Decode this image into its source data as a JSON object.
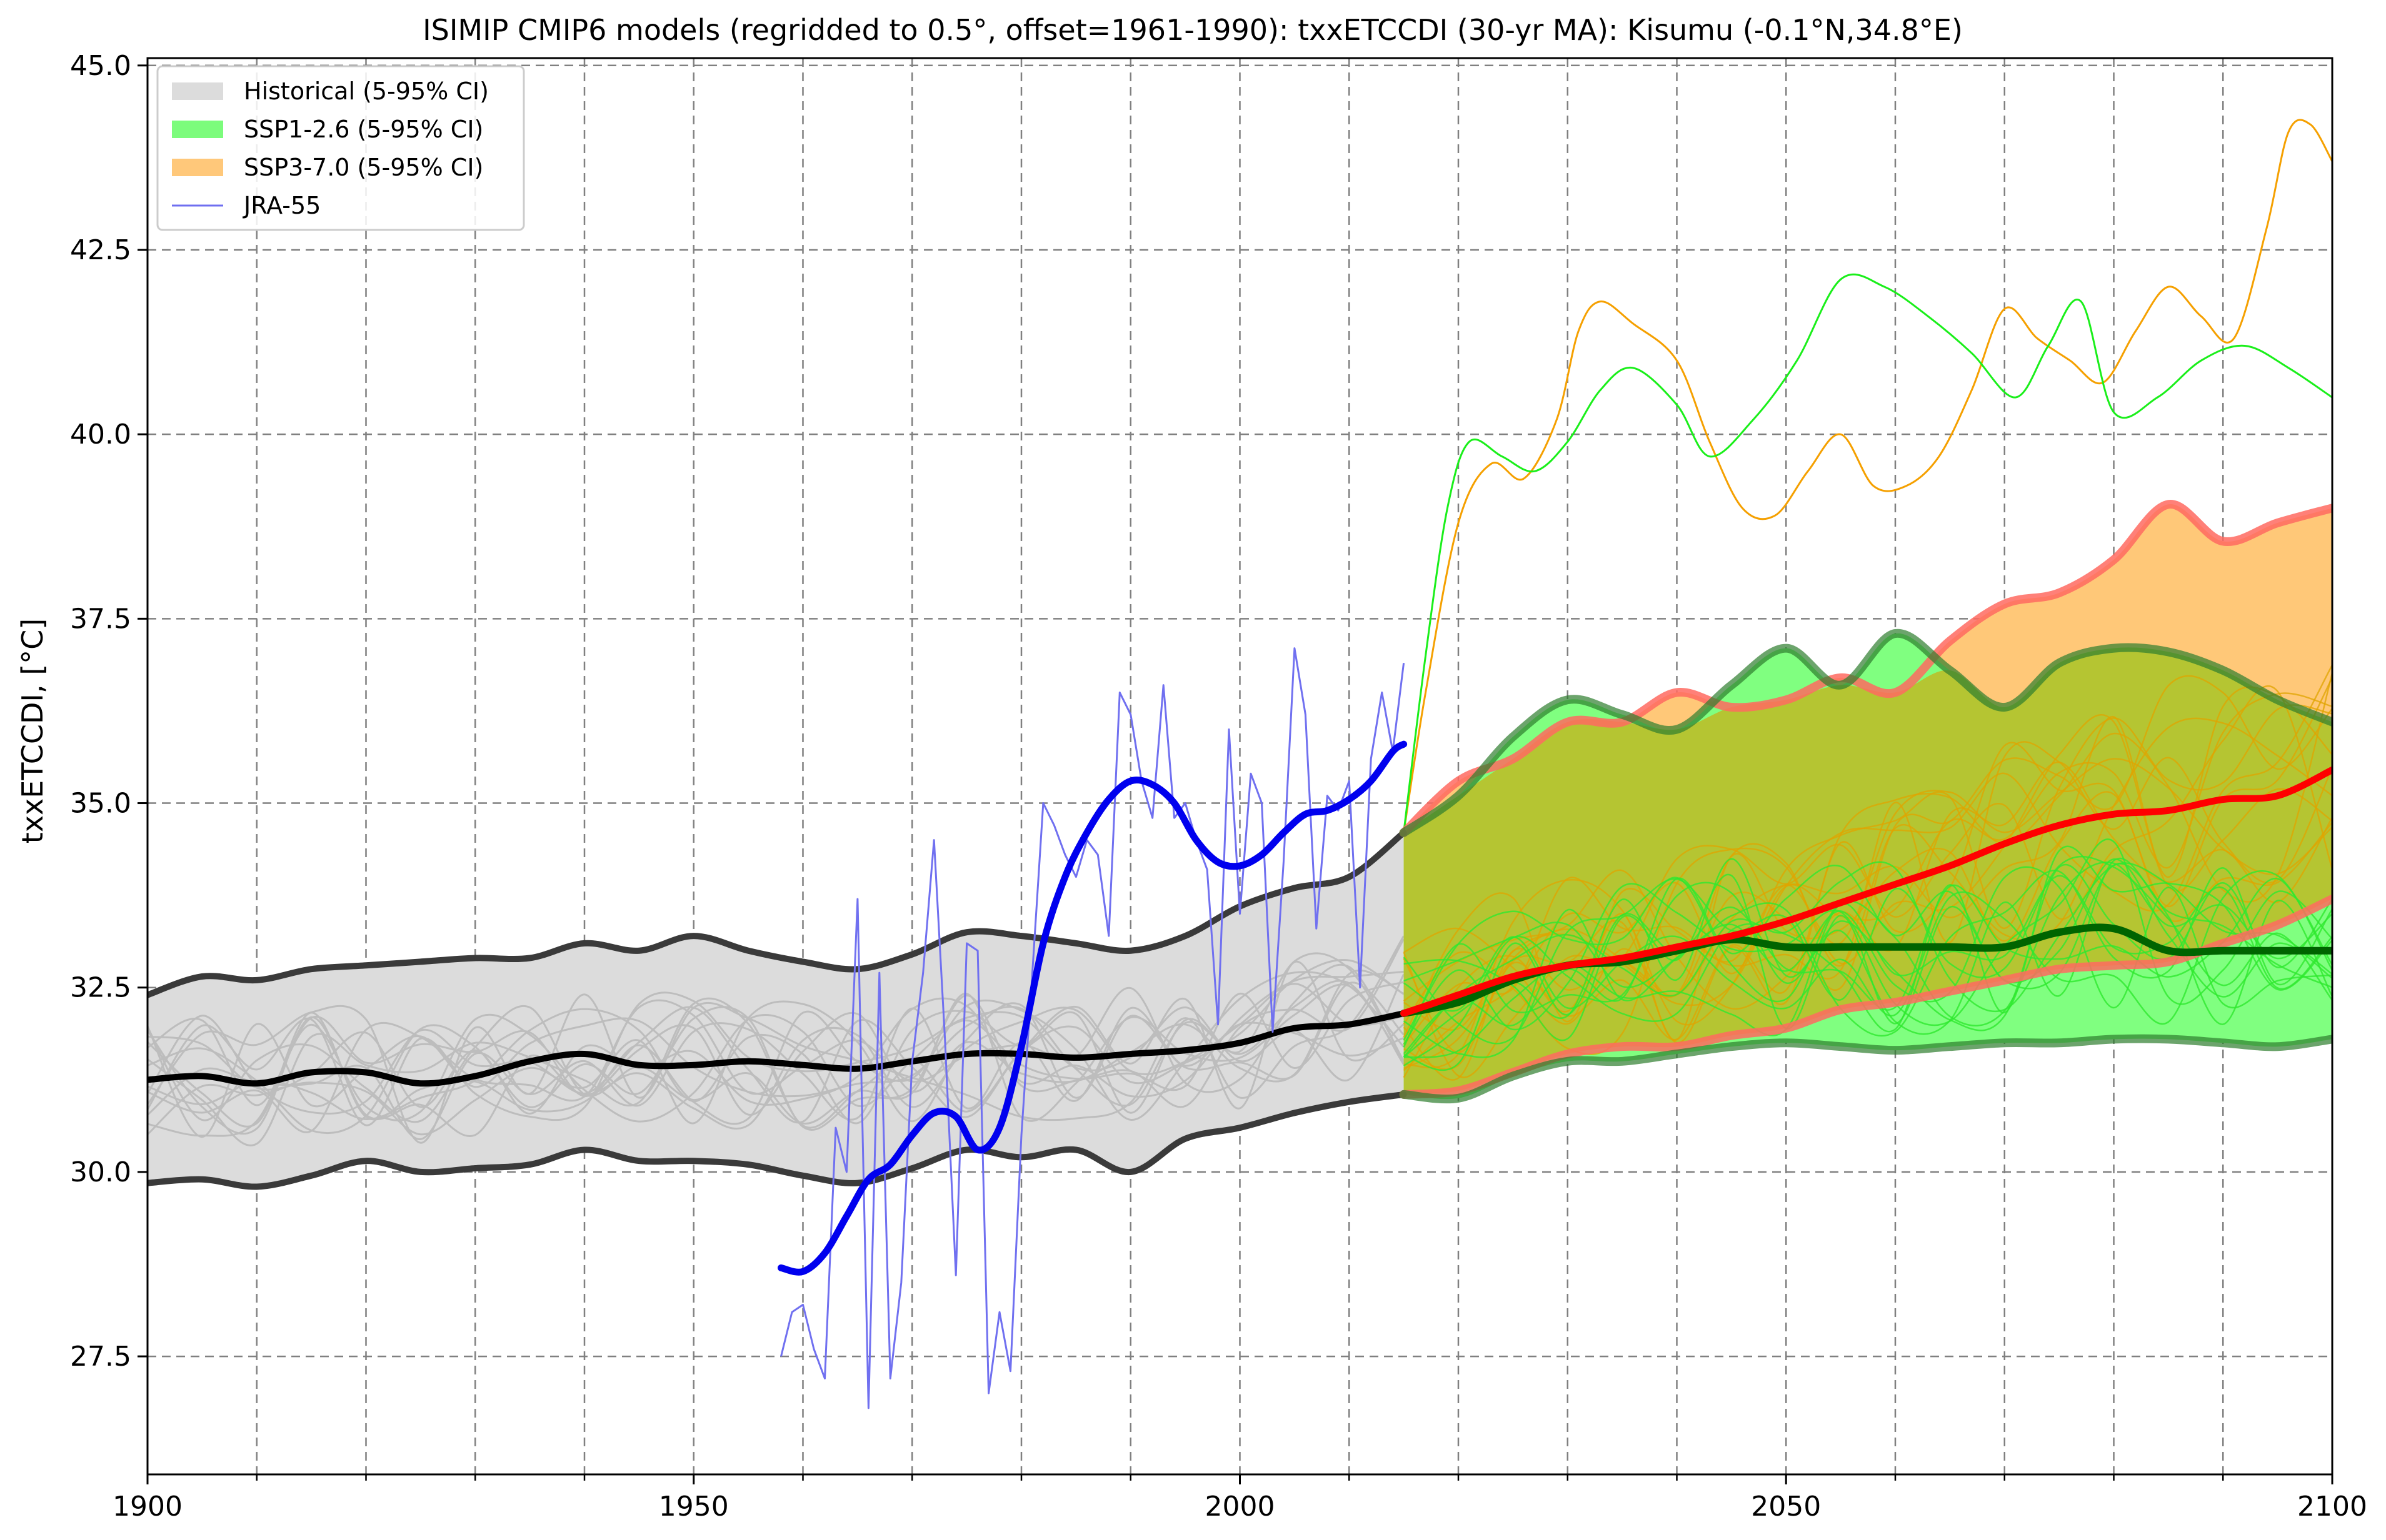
{
  "chart_data": {
    "type": "line",
    "title": "ISIMIP CMIP6 models (regridded to 0.5°, offset=1961-1990): txxETCCDI (30-yr MA): Kisumu (-0.1°N,34.8°E)",
    "xlabel": "",
    "ylabel": "txxETCCDI, [°C]",
    "xlim": [
      1900,
      2100
    ],
    "ylim": [
      25.9,
      45.1
    ],
    "xticks": [
      1900,
      1950,
      2000,
      2050,
      2100
    ],
    "xtick_labels": [
      "1900",
      "1950",
      "2000",
      "2050",
      "2100"
    ],
    "xminor_ticks": [
      1910,
      1920,
      1930,
      1940,
      1960,
      1970,
      1980,
      1990,
      2010,
      2020,
      2030,
      2040,
      2060,
      2070,
      2080,
      2090
    ],
    "yticks": [
      27.5,
      30.0,
      32.5,
      35.0,
      37.5,
      40.0,
      42.5,
      45.0
    ],
    "ytick_labels": [
      "27.5",
      "30.0",
      "32.5",
      "35.0",
      "37.5",
      "40.0",
      "42.5",
      "45.0"
    ],
    "grid": true,
    "legend_position": "top-left",
    "legend": [
      {
        "label": "Historical (5-95% CI)",
        "kind": "patch",
        "color": "#dcdcdc"
      },
      {
        "label": "SSP1-2.6 (5-95% CI)",
        "kind": "patch",
        "color": "#7cfc7c"
      },
      {
        "label": "SSP3-7.0 (5-95% CI)",
        "kind": "patch",
        "color": "#ffc87a"
      },
      {
        "label": "JRA-55",
        "kind": "line",
        "color": "#6f6ff0"
      }
    ],
    "colors": {
      "historical_band": "#dcdcdc",
      "historical_edge": "#3a3a3a",
      "historical_mean": "#000000",
      "historical_members": "#bdbdbd",
      "ssp126_band": "#80ff80",
      "ssp126_edge": "#2e7d2e",
      "ssp126_mean": "#006400",
      "ssp126_members": "#2ee82e",
      "ssp370_band": "#ffc878",
      "ssp370_edge": "#ff6a60",
      "ssp370_mean": "#ff0000",
      "ssp370_members": "#e0a400",
      "overlap_band": "#b5c532",
      "jra_raw": "#7070f0",
      "jra_smooth": "#0000ee"
    },
    "series": [
      {
        "name": "Historical (5-95% CI)",
        "role": "band",
        "x": [
          1900,
          1905,
          1910,
          1915,
          1920,
          1925,
          1930,
          1935,
          1940,
          1945,
          1950,
          1955,
          1960,
          1965,
          1970,
          1975,
          1980,
          1985,
          1990,
          1995,
          2000,
          2005,
          2010,
          2015
        ],
        "upper": [
          32.4,
          32.65,
          32.6,
          32.75,
          32.8,
          32.85,
          32.9,
          32.9,
          33.1,
          33.0,
          33.2,
          33.0,
          32.85,
          32.75,
          32.95,
          33.25,
          33.2,
          33.1,
          33.0,
          33.2,
          33.6,
          33.85,
          34.0,
          34.6
        ],
        "lower": [
          29.85,
          29.9,
          29.8,
          29.95,
          30.15,
          30.0,
          30.05,
          30.1,
          30.3,
          30.15,
          30.15,
          30.1,
          29.95,
          29.85,
          30.05,
          30.3,
          30.2,
          30.3,
          30.0,
          30.45,
          30.6,
          30.8,
          30.95,
          31.05
        ]
      },
      {
        "name": "Historical mean",
        "role": "mean",
        "x": [
          1900,
          1905,
          1910,
          1915,
          1920,
          1925,
          1930,
          1935,
          1940,
          1945,
          1950,
          1955,
          1960,
          1965,
          1970,
          1975,
          1980,
          1985,
          1990,
          1995,
          2000,
          2005,
          2010,
          2015
        ],
        "y": [
          31.25,
          31.3,
          31.2,
          31.35,
          31.35,
          31.2,
          31.3,
          31.5,
          31.6,
          31.45,
          31.45,
          31.5,
          31.45,
          31.4,
          31.5,
          31.6,
          31.6,
          31.55,
          31.6,
          31.65,
          31.75,
          31.95,
          32.0,
          32.15
        ]
      },
      {
        "name": "SSP1-2.6 (5-95% CI)",
        "role": "band",
        "x": [
          2015,
          2020,
          2025,
          2030,
          2035,
          2040,
          2045,
          2050,
          2055,
          2060,
          2065,
          2070,
          2075,
          2080,
          2085,
          2090,
          2095,
          2100
        ],
        "upper": [
          34.6,
          35.1,
          35.9,
          36.4,
          36.2,
          36.0,
          36.6,
          37.1,
          36.6,
          37.3,
          36.8,
          36.3,
          36.9,
          37.1,
          37.05,
          36.8,
          36.4,
          36.1
        ],
        "lower": [
          31.05,
          31.0,
          31.3,
          31.5,
          31.5,
          31.6,
          31.7,
          31.75,
          31.7,
          31.65,
          31.7,
          31.75,
          31.75,
          31.8,
          31.8,
          31.75,
          31.7,
          31.8
        ]
      },
      {
        "name": "SSP1-2.6 mean",
        "role": "mean",
        "x": [
          2015,
          2020,
          2025,
          2030,
          2035,
          2040,
          2045,
          2050,
          2055,
          2060,
          2065,
          2070,
          2075,
          2080,
          2085,
          2090,
          2095,
          2100
        ],
        "y": [
          32.15,
          32.3,
          32.6,
          32.8,
          32.85,
          33.0,
          33.15,
          33.05,
          33.05,
          33.05,
          33.05,
          33.05,
          33.25,
          33.3,
          33.0,
          33.0,
          33.0,
          33.0
        ]
      },
      {
        "name": "SSP3-7.0 (5-95% CI)",
        "role": "band",
        "x": [
          2015,
          2020,
          2025,
          2030,
          2035,
          2040,
          2045,
          2050,
          2055,
          2060,
          2065,
          2070,
          2075,
          2080,
          2085,
          2090,
          2095,
          2100
        ],
        "upper": [
          34.6,
          35.3,
          35.6,
          36.1,
          36.1,
          36.5,
          36.3,
          36.4,
          36.7,
          36.5,
          37.2,
          37.7,
          37.85,
          38.3,
          39.05,
          38.55,
          38.8,
          39.0
        ],
        "lower": [
          31.05,
          31.1,
          31.35,
          31.6,
          31.7,
          31.7,
          31.85,
          31.95,
          32.2,
          32.3,
          32.45,
          32.6,
          32.75,
          32.8,
          32.85,
          33.1,
          33.35,
          33.7
        ]
      },
      {
        "name": "SSP3-7.0 mean",
        "role": "mean",
        "x": [
          2015,
          2020,
          2025,
          2030,
          2035,
          2040,
          2045,
          2050,
          2055,
          2060,
          2065,
          2070,
          2075,
          2080,
          2085,
          2090,
          2095,
          2100
        ],
        "y": [
          32.15,
          32.4,
          32.65,
          32.8,
          32.9,
          33.05,
          33.2,
          33.4,
          33.65,
          33.9,
          34.15,
          34.45,
          34.7,
          34.85,
          34.9,
          35.05,
          35.1,
          35.45
        ]
      },
      {
        "name": "SSP1-2.6 outlier member",
        "role": "member",
        "scenario": "ssp126",
        "x": [
          2015,
          2017,
          2019,
          2021,
          2024,
          2027,
          2030,
          2033,
          2036,
          2040,
          2043,
          2047,
          2051,
          2055,
          2059,
          2063,
          2067,
          2071,
          2074,
          2077,
          2080,
          2084,
          2088,
          2092,
          2096,
          2100
        ],
        "y": [
          34.6,
          37.0,
          39.0,
          39.9,
          39.7,
          39.5,
          39.9,
          40.6,
          40.9,
          40.4,
          39.7,
          40.2,
          41.0,
          42.1,
          42.0,
          41.6,
          41.1,
          40.5,
          41.2,
          41.8,
          40.3,
          40.5,
          41.0,
          41.2,
          40.9,
          40.5
        ]
      },
      {
        "name": "SSP3-7.0 outlier member",
        "role": "member",
        "scenario": "ssp370",
        "x": [
          2015,
          2017,
          2020,
          2023,
          2026,
          2029,
          2031,
          2033,
          2036,
          2040,
          2043,
          2046,
          2049,
          2052,
          2055,
          2058,
          2061,
          2064,
          2067,
          2070,
          2073,
          2076,
          2079,
          2082,
          2085,
          2088,
          2091,
          2094,
          2096,
          2098,
          2100
        ],
        "y": [
          34.6,
          36.5,
          38.8,
          39.6,
          39.4,
          40.2,
          41.4,
          41.8,
          41.5,
          41.0,
          39.9,
          39.0,
          38.9,
          39.5,
          40.0,
          39.3,
          39.3,
          39.7,
          40.6,
          41.7,
          41.3,
          41.0,
          40.7,
          41.4,
          42.0,
          41.6,
          41.3,
          42.8,
          44.1,
          44.2,
          43.7
        ]
      },
      {
        "name": "JRA-55",
        "role": "observed",
        "x": [
          1958,
          1959,
          1960,
          1961,
          1962,
          1963,
          1964,
          1965,
          1966,
          1967,
          1968,
          1969,
          1970,
          1971,
          1972,
          1973,
          1974,
          1975,
          1976,
          1977,
          1978,
          1979,
          1980,
          1981,
          1982,
          1983,
          1984,
          1985,
          1986,
          1987,
          1988,
          1989,
          1990,
          1991,
          1992,
          1993,
          1994,
          1995,
          1996,
          1997,
          1998,
          1999,
          2000,
          2001,
          2002,
          2003,
          2004,
          2005,
          2006,
          2007,
          2008,
          2009,
          2010,
          2011,
          2012,
          2013,
          2014,
          2015
        ],
        "y": [
          27.5,
          28.1,
          28.2,
          27.6,
          27.2,
          30.6,
          30.0,
          33.7,
          26.8,
          32.7,
          27.2,
          28.5,
          31.5,
          32.7,
          34.5,
          31.8,
          28.6,
          33.1,
          33.0,
          27.0,
          28.1,
          27.3,
          30.5,
          32.7,
          35.0,
          34.7,
          34.3,
          34.0,
          34.5,
          34.3,
          33.2,
          36.5,
          36.2,
          35.3,
          34.8,
          36.6,
          34.8,
          35.0,
          34.5,
          34.1,
          32.0,
          36.0,
          33.5,
          35.4,
          35.0,
          31.9,
          34.2,
          37.1,
          36.2,
          33.3,
          35.1,
          34.9,
          35.3,
          32.5,
          35.6,
          36.5,
          35.7,
          36.9
        ]
      },
      {
        "name": "JRA-55 (smoothed)",
        "role": "observed-smooth",
        "x": [
          1958,
          1960,
          1962,
          1964,
          1966,
          1968,
          1970,
          1972,
          1974,
          1976,
          1978,
          1980,
          1982,
          1984,
          1986,
          1988,
          1990,
          1992,
          1994,
          1996,
          1998,
          2000,
          2002,
          2004,
          2006,
          2008,
          2010,
          2012,
          2014,
          2015
        ],
        "y": [
          28.7,
          28.65,
          28.9,
          29.4,
          29.9,
          30.1,
          30.5,
          30.8,
          30.75,
          30.3,
          30.6,
          31.7,
          33.1,
          34.0,
          34.6,
          35.05,
          35.3,
          35.25,
          35.0,
          34.5,
          34.2,
          34.15,
          34.3,
          34.6,
          34.85,
          34.9,
          35.05,
          35.3,
          35.7,
          35.8
        ]
      }
    ]
  }
}
